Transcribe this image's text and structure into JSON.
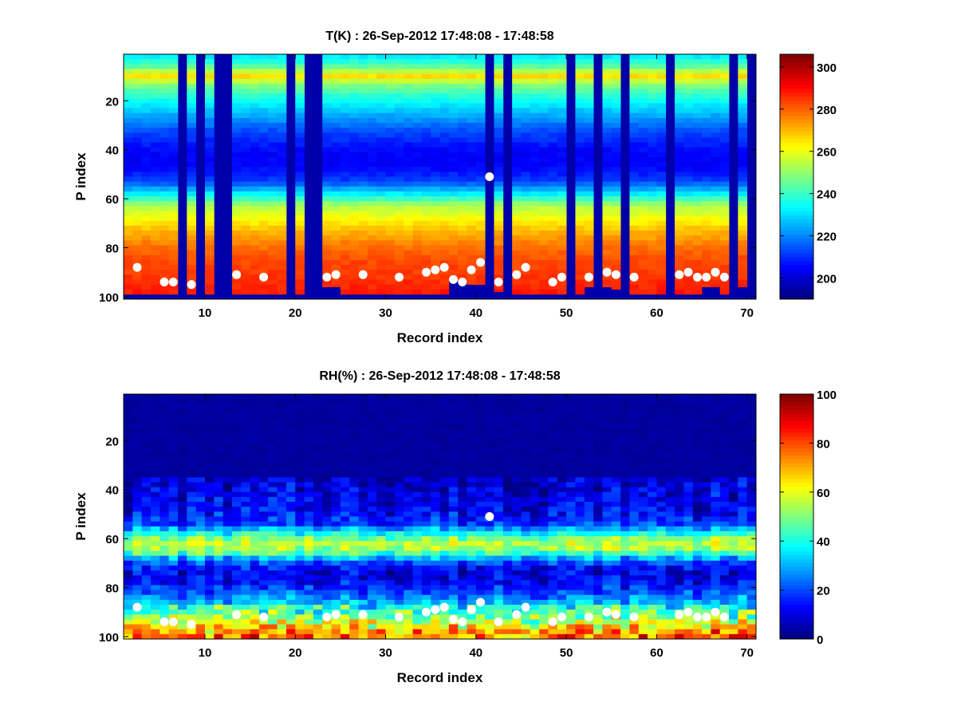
{
  "chart_data": [
    {
      "type": "heatmap",
      "title": "T(K) : 26-Sep-2012 17:48:08 - 17:48:58",
      "xlabel": "Record index",
      "ylabel": "P index",
      "xlim": [
        1,
        71
      ],
      "ylim": [
        1,
        101
      ],
      "xticks": [
        "10",
        "20",
        "30",
        "40",
        "50",
        "60",
        "70"
      ],
      "yticks": [
        "20",
        "40",
        "60",
        "80",
        "100"
      ],
      "colorbar": {
        "min": 190,
        "max": 306,
        "ticks": [
          "200",
          "220",
          "240",
          "260",
          "280",
          "300"
        ]
      },
      "colormap": "jet",
      "profile": {
        "p": [
          1,
          5,
          9,
          12,
          18,
          25,
          32,
          40,
          46,
          52,
          58,
          62,
          66,
          72,
          78,
          84,
          90,
          96,
          100
        ],
        "value": [
          232,
          244,
          266,
          250,
          236,
          224,
          212,
          204,
          204,
          212,
          236,
          254,
          260,
          270,
          278,
          283,
          285,
          288,
          290
        ]
      },
      "bottom_clip_p": [
        98,
        98,
        98,
        98,
        98,
        98,
        98,
        98,
        98,
        98,
        98,
        98,
        98,
        98,
        98,
        98,
        98,
        98,
        98,
        98,
        98,
        98,
        95,
        95,
        98,
        98,
        98,
        98,
        98,
        98,
        98,
        98,
        98,
        98,
        98,
        98,
        92,
        93,
        94,
        94,
        92,
        97,
        98,
        98,
        98,
        98,
        98,
        98,
        98,
        98,
        98,
        95,
        98,
        95,
        96,
        98,
        98,
        98,
        98,
        98,
        98,
        98,
        98,
        98,
        95,
        95,
        98,
        95,
        95,
        98
      ],
      "missing_records": [
        7,
        9,
        11,
        12,
        19,
        21,
        22,
        41,
        43,
        50,
        53,
        56,
        61,
        68,
        70
      ],
      "markers": {
        "x": [
          2,
          5,
          6,
          8,
          13,
          16,
          23,
          24,
          27,
          31,
          34,
          35,
          36,
          37,
          38,
          39,
          40,
          41,
          42,
          44,
          45,
          48,
          49,
          52,
          54,
          55,
          57,
          62,
          63,
          64,
          65,
          66,
          67
        ],
        "y": [
          88,
          94,
          94,
          95,
          91,
          92,
          92,
          91,
          91,
          92,
          90,
          89,
          88,
          93,
          94,
          89,
          86,
          51,
          94,
          91,
          88,
          94,
          92,
          92,
          90,
          91,
          92,
          91,
          90,
          92,
          92,
          90,
          92
        ]
      }
    },
    {
      "type": "heatmap",
      "title": "RH(%) : 26-Sep-2012 17:48:08 - 17:48:58",
      "xlabel": "Record index",
      "ylabel": "P index",
      "xlim": [
        1,
        71
      ],
      "ylim": [
        1,
        101
      ],
      "xticks": [
        "10",
        "20",
        "30",
        "40",
        "50",
        "60",
        "70"
      ],
      "yticks": [
        "20",
        "40",
        "60",
        "80",
        "100"
      ],
      "colorbar": {
        "min": 0,
        "max": 100,
        "ticks": [
          "0",
          "20",
          "40",
          "60",
          "80",
          "100"
        ]
      },
      "colormap": "jet",
      "profile": {
        "p": [
          1,
          30,
          36,
          42,
          48,
          53,
          56,
          59,
          62,
          65,
          68,
          72,
          76,
          80,
          84,
          88,
          92,
          96,
          100
        ],
        "value": [
          2,
          3,
          8,
          10,
          12,
          18,
          35,
          50,
          58,
          45,
          22,
          10,
          12,
          18,
          28,
          38,
          50,
          65,
          75
        ]
      },
      "markers": {
        "x": [
          2,
          5,
          6,
          8,
          13,
          16,
          23,
          24,
          27,
          31,
          34,
          35,
          36,
          37,
          38,
          39,
          40,
          41,
          42,
          44,
          45,
          48,
          49,
          52,
          54,
          55,
          57,
          62,
          63,
          64,
          65,
          66,
          67
        ],
        "y": [
          88,
          94,
          94,
          95,
          91,
          92,
          92,
          91,
          91,
          92,
          90,
          89,
          88,
          93,
          94,
          89,
          86,
          51,
          94,
          91,
          88,
          94,
          92,
          92,
          90,
          91,
          92,
          91,
          90,
          92,
          92,
          90,
          92
        ]
      }
    }
  ]
}
